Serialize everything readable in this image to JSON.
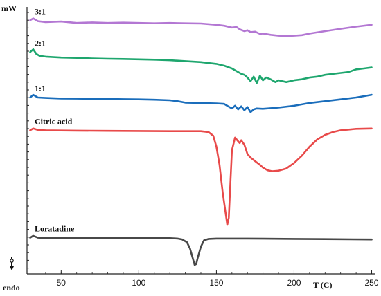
{
  "chart_data": {
    "type": "line",
    "xlabel": "T (C)",
    "ylabel": "mW",
    "endo_label": "endo",
    "xlim": [
      28,
      252
    ],
    "ylim": [
      0,
      13
    ],
    "xticks": [
      50,
      100,
      150,
      200,
      250
    ],
    "series": [
      {
        "name": "3:1",
        "color": "#b377d3",
        "points": [
          [
            30,
            13.45
          ],
          [
            32,
            13.55
          ],
          [
            35,
            13.4
          ],
          [
            40,
            13.35
          ],
          [
            50,
            13.38
          ],
          [
            60,
            13.3
          ],
          [
            70,
            13.33
          ],
          [
            80,
            13.3
          ],
          [
            90,
            13.32
          ],
          [
            100,
            13.3
          ],
          [
            110,
            13.28
          ],
          [
            120,
            13.3
          ],
          [
            130,
            13.28
          ],
          [
            140,
            13.27
          ],
          [
            150,
            13.2
          ],
          [
            155,
            13.15
          ],
          [
            160,
            13.05
          ],
          [
            163,
            13.08
          ],
          [
            165,
            12.95
          ],
          [
            168,
            12.85
          ],
          [
            170,
            12.9
          ],
          [
            172,
            12.8
          ],
          [
            175,
            12.82
          ],
          [
            178,
            12.7
          ],
          [
            180,
            12.72
          ],
          [
            185,
            12.65
          ],
          [
            190,
            12.6
          ],
          [
            195,
            12.58
          ],
          [
            200,
            12.6
          ],
          [
            205,
            12.63
          ],
          [
            210,
            12.72
          ],
          [
            220,
            12.85
          ],
          [
            230,
            12.98
          ],
          [
            240,
            13.1
          ],
          [
            250,
            13.2
          ]
        ]
      },
      {
        "name": "2:1",
        "color": "#1ea66e",
        "points": [
          [
            30,
            11.7
          ],
          [
            32,
            11.85
          ],
          [
            34,
            11.6
          ],
          [
            36,
            11.5
          ],
          [
            40,
            11.45
          ],
          [
            50,
            11.4
          ],
          [
            60,
            11.38
          ],
          [
            70,
            11.35
          ],
          [
            80,
            11.33
          ],
          [
            90,
            11.32
          ],
          [
            100,
            11.3
          ],
          [
            110,
            11.28
          ],
          [
            120,
            11.25
          ],
          [
            130,
            11.2
          ],
          [
            140,
            11.15
          ],
          [
            150,
            11.05
          ],
          [
            155,
            10.95
          ],
          [
            160,
            10.8
          ],
          [
            163,
            10.65
          ],
          [
            166,
            10.5
          ],
          [
            168,
            10.45
          ],
          [
            170,
            10.3
          ],
          [
            172,
            10.1
          ],
          [
            174,
            10.35
          ],
          [
            176,
            10.0
          ],
          [
            178,
            10.4
          ],
          [
            180,
            10.15
          ],
          [
            182,
            10.3
          ],
          [
            185,
            10.2
          ],
          [
            188,
            10.05
          ],
          [
            190,
            10.15
          ],
          [
            195,
            10.05
          ],
          [
            200,
            10.15
          ],
          [
            205,
            10.2
          ],
          [
            210,
            10.3
          ],
          [
            215,
            10.35
          ],
          [
            220,
            10.45
          ],
          [
            225,
            10.5
          ],
          [
            230,
            10.55
          ],
          [
            235,
            10.6
          ],
          [
            240,
            10.75
          ],
          [
            245,
            10.8
          ],
          [
            250,
            10.85
          ]
        ]
      },
      {
        "name": "1:1",
        "color": "#1a6dbb",
        "points": [
          [
            30,
            9.2
          ],
          [
            32,
            9.35
          ],
          [
            35,
            9.2
          ],
          [
            40,
            9.18
          ],
          [
            50,
            9.15
          ],
          [
            60,
            9.14
          ],
          [
            70,
            9.13
          ],
          [
            80,
            9.12
          ],
          [
            90,
            9.11
          ],
          [
            100,
            9.1
          ],
          [
            110,
            9.08
          ],
          [
            120,
            9.05
          ],
          [
            125,
            9.0
          ],
          [
            130,
            8.92
          ],
          [
            140,
            8.9
          ],
          [
            150,
            8.88
          ],
          [
            155,
            8.85
          ],
          [
            158,
            8.7
          ],
          [
            160,
            8.6
          ],
          [
            162,
            8.75
          ],
          [
            164,
            8.55
          ],
          [
            166,
            8.72
          ],
          [
            168,
            8.5
          ],
          [
            170,
            8.68
          ],
          [
            172,
            8.4
          ],
          [
            174,
            8.55
          ],
          [
            176,
            8.6
          ],
          [
            180,
            8.58
          ],
          [
            190,
            8.65
          ],
          [
            200,
            8.75
          ],
          [
            210,
            8.9
          ],
          [
            220,
            9.0
          ],
          [
            230,
            9.1
          ],
          [
            240,
            9.2
          ],
          [
            250,
            9.35
          ]
        ]
      },
      {
        "name": "Citric acid",
        "color": "#e84a4a",
        "points": [
          [
            30,
            7.4
          ],
          [
            32,
            7.5
          ],
          [
            35,
            7.42
          ],
          [
            40,
            7.4
          ],
          [
            60,
            7.38
          ],
          [
            80,
            7.37
          ],
          [
            100,
            7.36
          ],
          [
            120,
            7.35
          ],
          [
            130,
            7.35
          ],
          [
            140,
            7.35
          ],
          [
            145,
            7.3
          ],
          [
            148,
            7.1
          ],
          [
            150,
            6.5
          ],
          [
            152,
            5.5
          ],
          [
            154,
            4.0
          ],
          [
            156,
            2.8
          ],
          [
            157,
            2.2
          ],
          [
            158,
            2.6
          ],
          [
            159,
            4.5
          ],
          [
            160,
            6.3
          ],
          [
            162,
            7.0
          ],
          [
            163,
            6.9
          ],
          [
            165,
            6.7
          ],
          [
            166,
            6.85
          ],
          [
            168,
            6.6
          ],
          [
            170,
            6.1
          ],
          [
            172,
            5.9
          ],
          [
            175,
            5.7
          ],
          [
            178,
            5.5
          ],
          [
            180,
            5.35
          ],
          [
            183,
            5.2
          ],
          [
            186,
            5.15
          ],
          [
            190,
            5.18
          ],
          [
            195,
            5.3
          ],
          [
            200,
            5.6
          ],
          [
            205,
            6.0
          ],
          [
            210,
            6.5
          ],
          [
            215,
            6.9
          ],
          [
            220,
            7.15
          ],
          [
            225,
            7.3
          ],
          [
            230,
            7.4
          ],
          [
            240,
            7.48
          ],
          [
            250,
            7.5
          ]
        ]
      },
      {
        "name": "Loratadine",
        "color": "#484848",
        "points": [
          [
            30,
            1.5
          ],
          [
            32,
            1.6
          ],
          [
            35,
            1.5
          ],
          [
            40,
            1.48
          ],
          [
            60,
            1.47
          ],
          [
            80,
            1.47
          ],
          [
            100,
            1.47
          ],
          [
            120,
            1.47
          ],
          [
            125,
            1.45
          ],
          [
            128,
            1.4
          ],
          [
            131,
            1.25
          ],
          [
            133,
            0.9
          ],
          [
            135,
            0.3
          ],
          [
            136,
            0.0
          ],
          [
            137,
            0.05
          ],
          [
            138,
            0.4
          ],
          [
            140,
            1.0
          ],
          [
            142,
            1.35
          ],
          [
            145,
            1.43
          ],
          [
            150,
            1.45
          ],
          [
            170,
            1.45
          ],
          [
            200,
            1.43
          ],
          [
            220,
            1.42
          ],
          [
            250,
            1.4
          ]
        ]
      }
    ]
  }
}
